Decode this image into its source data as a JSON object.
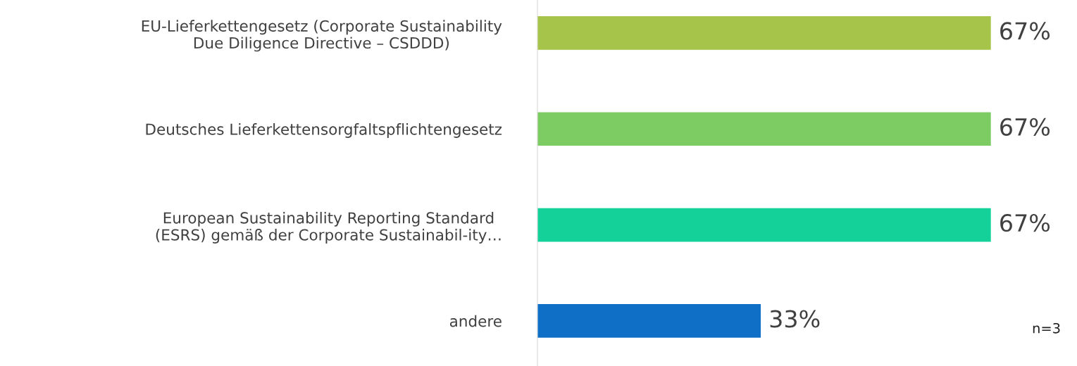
{
  "chart_data": {
    "type": "bar",
    "orientation": "horizontal",
    "categories": [
      "EU-Lieferkettengesetz (Corporate Sustainability\nDue Diligence Directive – CSDDD)",
      "Deutsches Lieferkettensorgfaltspflichtengesetz",
      "European Sustainability Reporting Standard\n(ESRS) gemäß der Corporate Sustainabil-ity…",
      "andere"
    ],
    "values": [
      67,
      67,
      67,
      33
    ],
    "colors": [
      "#a6c34a",
      "#7dcc63",
      "#14d19a",
      "#0f6fc6"
    ],
    "value_labels": [
      "67%",
      "67%",
      "67%",
      "33%"
    ],
    "tick_labels": "y",
    "annotations": [
      "n=3"
    ]
  }
}
